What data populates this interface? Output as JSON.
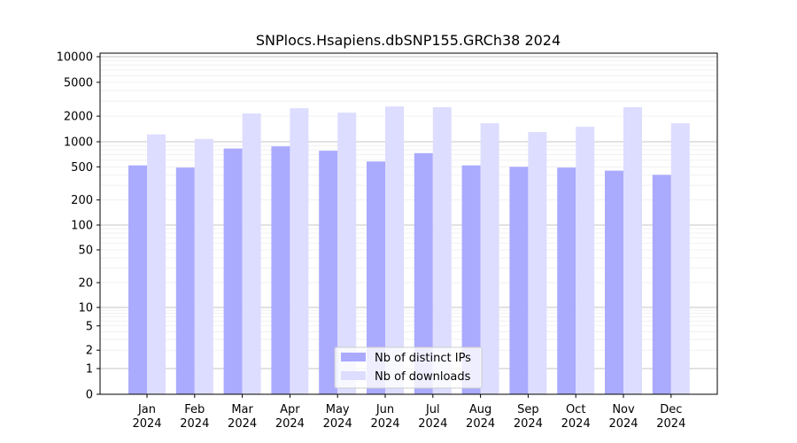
{
  "chart_data": {
    "type": "bar",
    "title": "SNPlocs.Hsapiens.dbSNP155.GRCh38 2024",
    "scale": "symlog",
    "categories": [
      [
        "Jan",
        "2024"
      ],
      [
        "Feb",
        "2024"
      ],
      [
        "Mar",
        "2024"
      ],
      [
        "Apr",
        "2024"
      ],
      [
        "May",
        "2024"
      ],
      [
        "Jun",
        "2024"
      ],
      [
        "Jul",
        "2024"
      ],
      [
        "Aug",
        "2024"
      ],
      [
        "Sep",
        "2024"
      ],
      [
        "Oct",
        "2024"
      ],
      [
        "Nov",
        "2024"
      ],
      [
        "Dec",
        "2024"
      ]
    ],
    "series": [
      {
        "name": "Nb of distinct IPs",
        "color": "#aaaaff",
        "values": [
          520,
          490,
          830,
          880,
          780,
          580,
          730,
          520,
          500,
          490,
          450,
          400
        ]
      },
      {
        "name": "Nb of downloads",
        "color": "#ddddff",
        "values": [
          1220,
          1080,
          2150,
          2480,
          2200,
          2600,
          2550,
          1650,
          1300,
          1500,
          2550,
          1650
        ]
      }
    ],
    "yticks": [
      0,
      1,
      2,
      5,
      10,
      20,
      50,
      100,
      200,
      500,
      1000,
      2000,
      5000,
      10000
    ],
    "ylim": [
      0,
      12000
    ],
    "grid": true,
    "legend_position": "bottom-center"
  }
}
